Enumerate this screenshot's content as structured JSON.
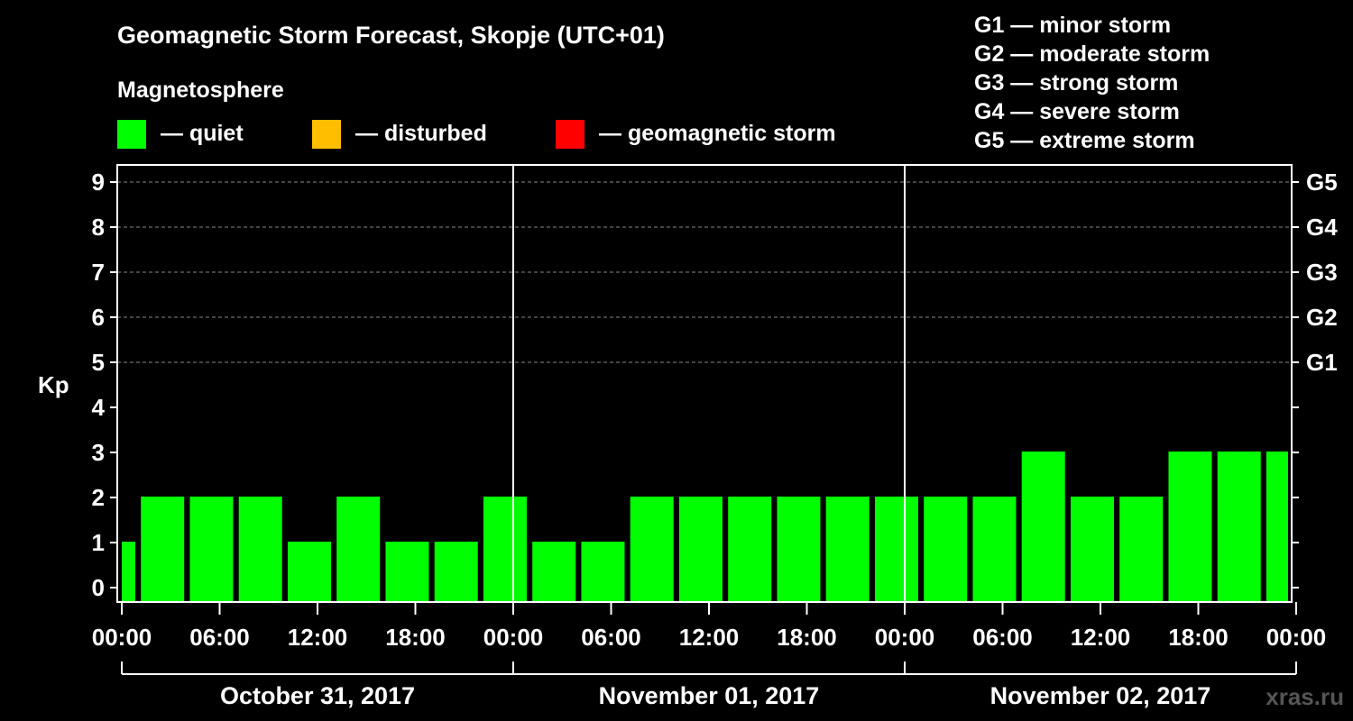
{
  "chart_data": {
    "type": "bar",
    "title": "Geomagnetic Storm Forecast, Skopje (UTC+01)",
    "subtitle": "Magnetosphere",
    "ylabel": "Kp",
    "ylim": [
      0,
      9
    ],
    "yticks": [
      "0",
      "1",
      "2",
      "3",
      "4",
      "5",
      "6",
      "7",
      "8",
      "9"
    ],
    "g_scale": [
      {
        "kp": 5,
        "label": "G1"
      },
      {
        "kp": 6,
        "label": "G2"
      },
      {
        "kp": 7,
        "label": "G3"
      },
      {
        "kp": 8,
        "label": "G4"
      },
      {
        "kp": 9,
        "label": "G5"
      }
    ],
    "xticks": [
      "00:00",
      "06:00",
      "12:00",
      "18:00",
      "00:00",
      "06:00",
      "12:00",
      "18:00",
      "00:00",
      "06:00",
      "12:00",
      "18:00",
      "00:00"
    ],
    "days": [
      "October 31, 2017",
      "November 01, 2017",
      "November 02, 2017"
    ],
    "bar_interval_hours": 3,
    "start_offset_hours": 1,
    "values": [
      1,
      2,
      2,
      2,
      1,
      2,
      1,
      1,
      2,
      1,
      1,
      2,
      2,
      2,
      2,
      2,
      2,
      2,
      2,
      3,
      2,
      2,
      3,
      3,
      3
    ],
    "legend": [
      {
        "label": "— quiet",
        "color": "#00ff00"
      },
      {
        "label": "— disturbed",
        "color": "#ffbf00"
      },
      {
        "label": "— geomagnetic storm",
        "color": "#ff0000"
      }
    ],
    "scale_legend": [
      "G1 — minor storm",
      "G2 — moderate storm",
      "G3 — strong storm",
      "G4 — severe storm",
      "G5 — extreme storm"
    ]
  },
  "watermark": "xras.ru"
}
